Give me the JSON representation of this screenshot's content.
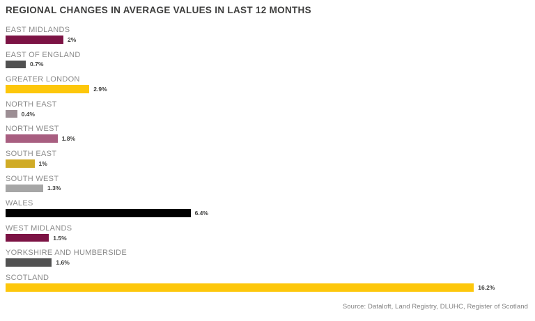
{
  "chart_data": {
    "type": "bar",
    "orientation": "horizontal",
    "title": "REGIONAL CHANGES IN AVERAGE VALUES IN LAST 12 MONTHS",
    "source": "Source: Dataloft, Land Registry, DLUHC, Register of Scotland",
    "unit": "%",
    "xlim": [
      0,
      17
    ],
    "grid": false,
    "legend": "none",
    "categories": [
      "EAST MIDLANDS",
      "EAST OF ENGLAND",
      "GREATER LONDON",
      "NORTH EAST",
      "NORTH WEST",
      "SOUTH EAST",
      "SOUTH WEST",
      "WALES",
      "WEST MIDLANDS",
      "YORKSHIRE AND HUMBERSIDE",
      "SCOTLAND"
    ],
    "values": [
      2,
      0.7,
      2.9,
      0.4,
      1.8,
      1,
      1.3,
      6.4,
      1.5,
      1.6,
      16.2
    ],
    "value_labels": [
      "2%",
      "0.7%",
      "2.9%",
      "0.4%",
      "1.8%",
      "1%",
      "1.3%",
      "6.4%",
      "1.5%",
      "1.6%",
      "16.2%"
    ],
    "bar_colors": [
      "#7c1344",
      "#515151",
      "#fdc70b",
      "#9c8e94",
      "#a85e80",
      "#d0ab26",
      "#a6a6a6",
      "#000000",
      "#7c1344",
      "#515151",
      "#fdc70b"
    ]
  },
  "colors": {
    "background": "#ffffff",
    "title_text": "#3d3d3c",
    "region_label_text": "#8a8a8a",
    "value_label_text": "#3d3d3c",
    "source_text": "#7f7f7f"
  }
}
